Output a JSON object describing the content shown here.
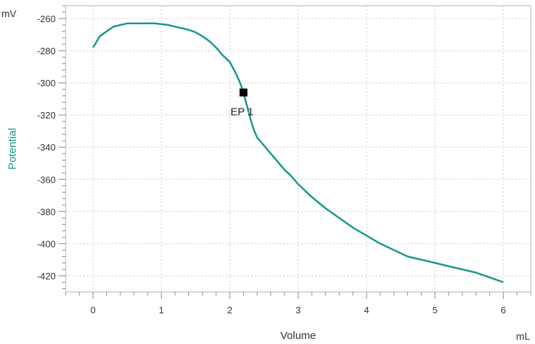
{
  "chart_data": {
    "type": "line",
    "xlabel": "Volume",
    "ylabel": "Potential",
    "x_unit": "mL",
    "y_unit": "mV",
    "xlim": [
      -0.4,
      6.4
    ],
    "ylim": [
      -430,
      -252
    ],
    "x_ticks": [
      0,
      1,
      2,
      3,
      4,
      5,
      6
    ],
    "y_ticks": [
      -260,
      -280,
      -300,
      -320,
      -340,
      -360,
      -380,
      -400,
      -420
    ],
    "grid": true,
    "colors": {
      "line": "#17978e",
      "ylabel": "#17978e",
      "marker": "#000000",
      "grid": "#c8c8c8",
      "axis": "#888888"
    },
    "series": [
      {
        "x": [
          0,
          0.1,
          0.2,
          0.3,
          0.4,
          0.5,
          0.6,
          0.7,
          0.8,
          0.9,
          1.0,
          1.1,
          1.2,
          1.3,
          1.4,
          1.5,
          1.6,
          1.7,
          1.8,
          1.9,
          2.0,
          2.1,
          2.15,
          2.2,
          2.25,
          2.3,
          2.35,
          2.4,
          2.5,
          2.6,
          2.7,
          2.8,
          2.9,
          3.0,
          3.2,
          3.4,
          3.6,
          3.8,
          4.0,
          4.2,
          4.4,
          4.6,
          4.8,
          5.0,
          5.2,
          5.4,
          5.6,
          5.8,
          6.0
        ],
        "y": [
          -278,
          -271,
          -268,
          -265,
          -264,
          -263,
          -263,
          -263,
          -263,
          -263,
          -263.5,
          -264,
          -265,
          -266,
          -267,
          -268.5,
          -271,
          -274,
          -278,
          -283,
          -287,
          -295,
          -300,
          -306,
          -314,
          -322,
          -329,
          -334,
          -339,
          -344,
          -349,
          -354,
          -358,
          -363,
          -371,
          -378,
          -384,
          -390,
          -395,
          -400,
          -404,
          -408,
          -410,
          -412,
          -414,
          -416,
          -418,
          -421,
          -424
        ]
      }
    ],
    "endpoint": {
      "label": "EP 1",
      "x": 2.2,
      "y": -306
    }
  }
}
